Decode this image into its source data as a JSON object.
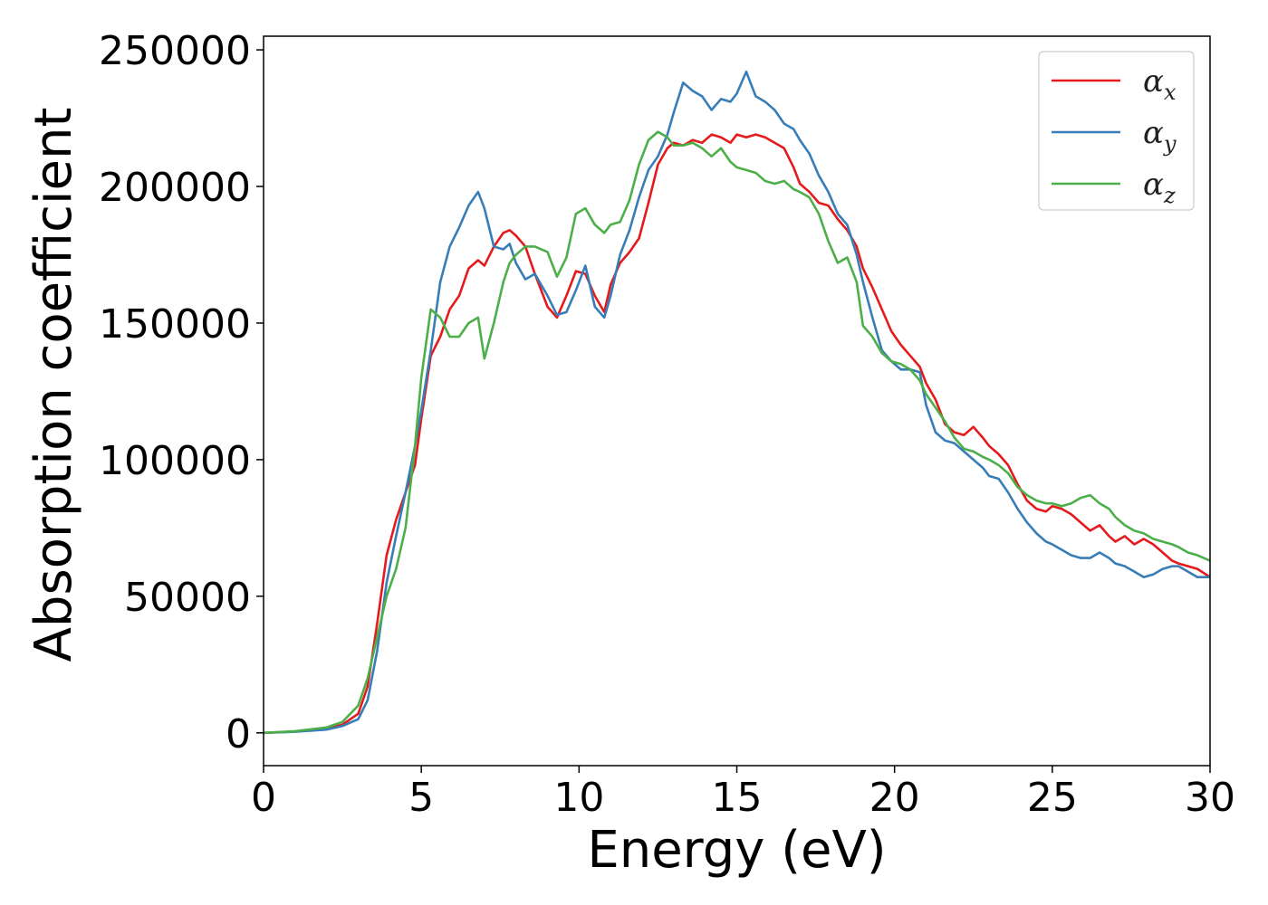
{
  "chart_data": {
    "type": "line",
    "title": "",
    "xlabel": "Energy (eV)",
    "ylabel": "Absorption coefficient",
    "xlim": [
      0,
      30
    ],
    "ylim": [
      -12000,
      255000
    ],
    "xticks": [
      0,
      5,
      10,
      15,
      20,
      25,
      30
    ],
    "yticks": [
      0,
      50000,
      100000,
      150000,
      200000,
      250000
    ],
    "grid": false,
    "legend_position": "top-right",
    "series": [
      {
        "name": "α_x",
        "label_base": "α",
        "label_sub": "x",
        "color": "#e41a1c",
        "x": [
          0,
          1,
          2,
          2.5,
          3,
          3.3,
          3.6,
          3.9,
          4.2,
          4.5,
          4.8,
          5,
          5.3,
          5.6,
          5.9,
          6.2,
          6.5,
          6.8,
          7,
          7.3,
          7.6,
          7.8,
          8,
          8.3,
          8.6,
          9,
          9.3,
          9.6,
          9.9,
          10.2,
          10.5,
          10.8,
          11,
          11.3,
          11.6,
          11.9,
          12.2,
          12.5,
          12.8,
          13,
          13.3,
          13.6,
          13.9,
          14.2,
          14.5,
          14.8,
          15,
          15.3,
          15.6,
          15.9,
          16.2,
          16.5,
          16.8,
          17,
          17.3,
          17.6,
          17.9,
          18.2,
          18.5,
          18.8,
          19,
          19.3,
          19.6,
          19.9,
          20.2,
          20.5,
          20.8,
          21,
          21.3,
          21.6,
          21.9,
          22.2,
          22.5,
          22.8,
          23,
          23.3,
          23.6,
          23.9,
          24.2,
          24.5,
          24.8,
          25,
          25.3,
          25.6,
          25.9,
          26.2,
          26.5,
          26.8,
          27,
          27.3,
          27.6,
          27.9,
          28.2,
          28.5,
          28.8,
          29,
          29.3,
          29.6,
          30
        ],
        "y": [
          0,
          500,
          1500,
          3000,
          7000,
          17000,
          40000,
          65000,
          78000,
          88000,
          98000,
          115000,
          138000,
          145000,
          155000,
          160000,
          170000,
          173000,
          171000,
          178000,
          183000,
          184000,
          182000,
          178000,
          168000,
          156000,
          152000,
          160000,
          169000,
          168000,
          160000,
          154000,
          164000,
          172000,
          176000,
          181000,
          194000,
          208000,
          214000,
          216000,
          215000,
          217000,
          216000,
          219000,
          218000,
          216000,
          219000,
          218000,
          219000,
          218000,
          216000,
          214000,
          207000,
          201000,
          198000,
          194000,
          193000,
          188000,
          184000,
          178000,
          170000,
          163000,
          155000,
          147000,
          142000,
          138000,
          134000,
          128000,
          122000,
          113000,
          110000,
          109000,
          112000,
          108000,
          105000,
          102000,
          98000,
          91000,
          85000,
          82000,
          81000,
          83000,
          82000,
          80000,
          77000,
          74000,
          76000,
          72000,
          70000,
          72000,
          69000,
          71000,
          69000,
          66000,
          63000,
          62000,
          61000,
          60000,
          57000
        ]
      },
      {
        "name": "α_y",
        "label_base": "α",
        "label_sub": "y",
        "color": "#377eb8",
        "x": [
          0,
          1,
          2,
          2.5,
          3,
          3.3,
          3.6,
          3.9,
          4.2,
          4.5,
          4.8,
          5,
          5.3,
          5.6,
          5.9,
          6.2,
          6.5,
          6.8,
          7,
          7.3,
          7.6,
          7.8,
          8,
          8.3,
          8.6,
          9,
          9.3,
          9.6,
          9.9,
          10.2,
          10.5,
          10.8,
          11,
          11.3,
          11.6,
          11.9,
          12.2,
          12.5,
          12.8,
          13,
          13.3,
          13.6,
          13.9,
          14.2,
          14.5,
          14.8,
          15,
          15.3,
          15.6,
          15.9,
          16.2,
          16.5,
          16.8,
          17,
          17.3,
          17.6,
          17.9,
          18.2,
          18.5,
          18.8,
          19,
          19.3,
          19.6,
          19.9,
          20.2,
          20.5,
          20.8,
          21,
          21.3,
          21.6,
          21.9,
          22.2,
          22.5,
          22.8,
          23,
          23.3,
          23.6,
          23.9,
          24.2,
          24.5,
          24.8,
          25,
          25.3,
          25.6,
          25.9,
          26.2,
          26.5,
          26.8,
          27,
          27.3,
          27.6,
          27.9,
          28.2,
          28.5,
          28.8,
          29,
          29.3,
          29.6,
          30
        ],
        "y": [
          0,
          400,
          1200,
          2500,
          5000,
          12000,
          30000,
          55000,
          72000,
          88000,
          105000,
          118000,
          140000,
          165000,
          178000,
          185000,
          193000,
          198000,
          192000,
          178000,
          177000,
          179000,
          172000,
          166000,
          168000,
          160000,
          153000,
          154000,
          162000,
          171000,
          156000,
          152000,
          160000,
          175000,
          184000,
          196000,
          206000,
          211000,
          219000,
          227000,
          238000,
          235000,
          233000,
          228000,
          232000,
          231000,
          234000,
          242000,
          233000,
          231000,
          228000,
          223000,
          221000,
          217000,
          212000,
          204000,
          198000,
          190000,
          186000,
          175000,
          165000,
          152000,
          140000,
          136000,
          133000,
          133000,
          132000,
          120000,
          110000,
          107000,
          106000,
          103000,
          100000,
          97000,
          94000,
          93000,
          88000,
          82000,
          77000,
          73000,
          70000,
          69000,
          67000,
          65000,
          64000,
          64000,
          66000,
          64000,
          62000,
          61000,
          59000,
          57000,
          58000,
          60000,
          61000,
          61000,
          59000,
          57000,
          57000
        ]
      },
      {
        "name": "α_z",
        "label_base": "α",
        "label_sub": "z",
        "color": "#4daf4a",
        "x": [
          0,
          1,
          2,
          2.5,
          3,
          3.3,
          3.6,
          3.9,
          4.2,
          4.5,
          4.8,
          5,
          5.3,
          5.6,
          5.9,
          6.2,
          6.5,
          6.8,
          7,
          7.3,
          7.6,
          7.8,
          8,
          8.3,
          8.6,
          9,
          9.3,
          9.6,
          9.9,
          10.2,
          10.5,
          10.8,
          11,
          11.3,
          11.6,
          11.9,
          12.2,
          12.5,
          12.8,
          13,
          13.3,
          13.6,
          13.9,
          14.2,
          14.5,
          14.8,
          15,
          15.3,
          15.6,
          15.9,
          16.2,
          16.5,
          16.8,
          17,
          17.3,
          17.6,
          17.9,
          18.2,
          18.5,
          18.8,
          19,
          19.3,
          19.6,
          19.9,
          20.2,
          20.5,
          20.8,
          21,
          21.3,
          21.6,
          21.9,
          22.2,
          22.5,
          22.8,
          23,
          23.3,
          23.6,
          23.9,
          24.2,
          24.5,
          24.8,
          25,
          25.3,
          25.6,
          25.9,
          26.2,
          26.5,
          26.8,
          27,
          27.3,
          27.6,
          27.9,
          28.2,
          28.5,
          28.8,
          29,
          29.3,
          29.6,
          30
        ],
        "y": [
          0,
          600,
          2000,
          4000,
          10000,
          20000,
          35000,
          50000,
          60000,
          75000,
          105000,
          130000,
          155000,
          152000,
          145000,
          145000,
          150000,
          152000,
          137000,
          150000,
          165000,
          172000,
          175000,
          178000,
          178000,
          176000,
          167000,
          174000,
          190000,
          192000,
          186000,
          183000,
          186000,
          187000,
          195000,
          208000,
          217000,
          220000,
          218000,
          215000,
          215000,
          216000,
          214000,
          211000,
          214000,
          209000,
          207000,
          206000,
          205000,
          202000,
          201000,
          202000,
          199000,
          198000,
          196000,
          190000,
          180000,
          172000,
          174000,
          165000,
          149000,
          145000,
          139000,
          136000,
          135000,
          133000,
          129000,
          124000,
          119000,
          114000,
          108000,
          104000,
          103000,
          101000,
          100000,
          98000,
          95000,
          90000,
          87000,
          85000,
          84000,
          84000,
          83000,
          84000,
          86000,
          87000,
          84000,
          82000,
          79000,
          76000,
          74000,
          73000,
          71000,
          70000,
          69000,
          68000,
          66000,
          65000,
          63000
        ]
      }
    ]
  }
}
